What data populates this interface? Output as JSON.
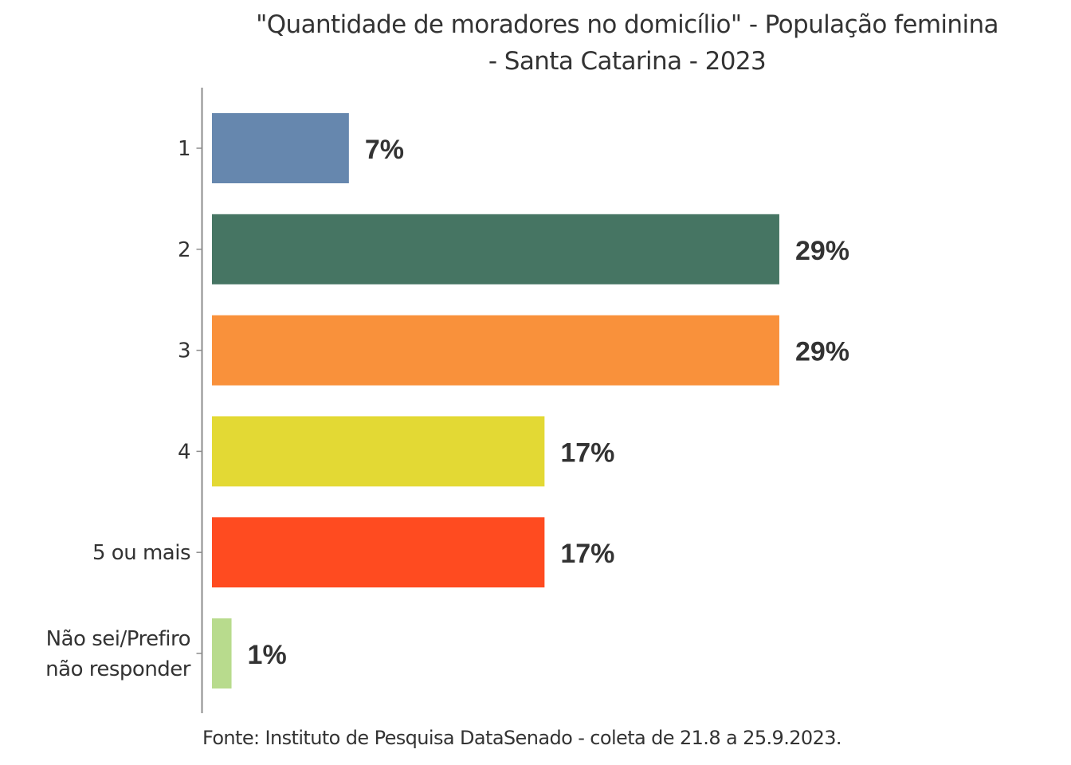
{
  "chart_data": {
    "type": "bar",
    "orientation": "horizontal",
    "title": "\"Quantidade de moradores no domicílio\" - População feminina - Santa Catarina - 2023",
    "title_lines": [
      "\"Quantidade de moradores no domicílio\" - População feminina",
      "- Santa Catarina - 2023"
    ],
    "categories": [
      [
        "1"
      ],
      [
        "2"
      ],
      [
        "3"
      ],
      [
        "4"
      ],
      [
        "5 ou mais"
      ],
      [
        "Não sei/Prefiro",
        "não responder"
      ]
    ],
    "category_names": [
      "1",
      "2",
      "3",
      "4",
      "5 ou mais",
      "Não sei/Prefiro não responder"
    ],
    "values": [
      7,
      29,
      29,
      17,
      17,
      1
    ],
    "value_labels": [
      "7%",
      "29%",
      "29%",
      "17%",
      "17%",
      "1%"
    ],
    "colors": [
      "#6687ae",
      "#467563",
      "#f9913b",
      "#e3d934",
      "#ff4b20",
      "#b8db8d"
    ],
    "xlabel": "",
    "ylabel": "",
    "xlim": [
      0,
      40
    ],
    "x_axis_visible": false,
    "grid": false,
    "legend": "none",
    "source": "Fonte: Instituto de Pesquisa DataSenado - coleta de 21.8 a 25.9.2023."
  }
}
